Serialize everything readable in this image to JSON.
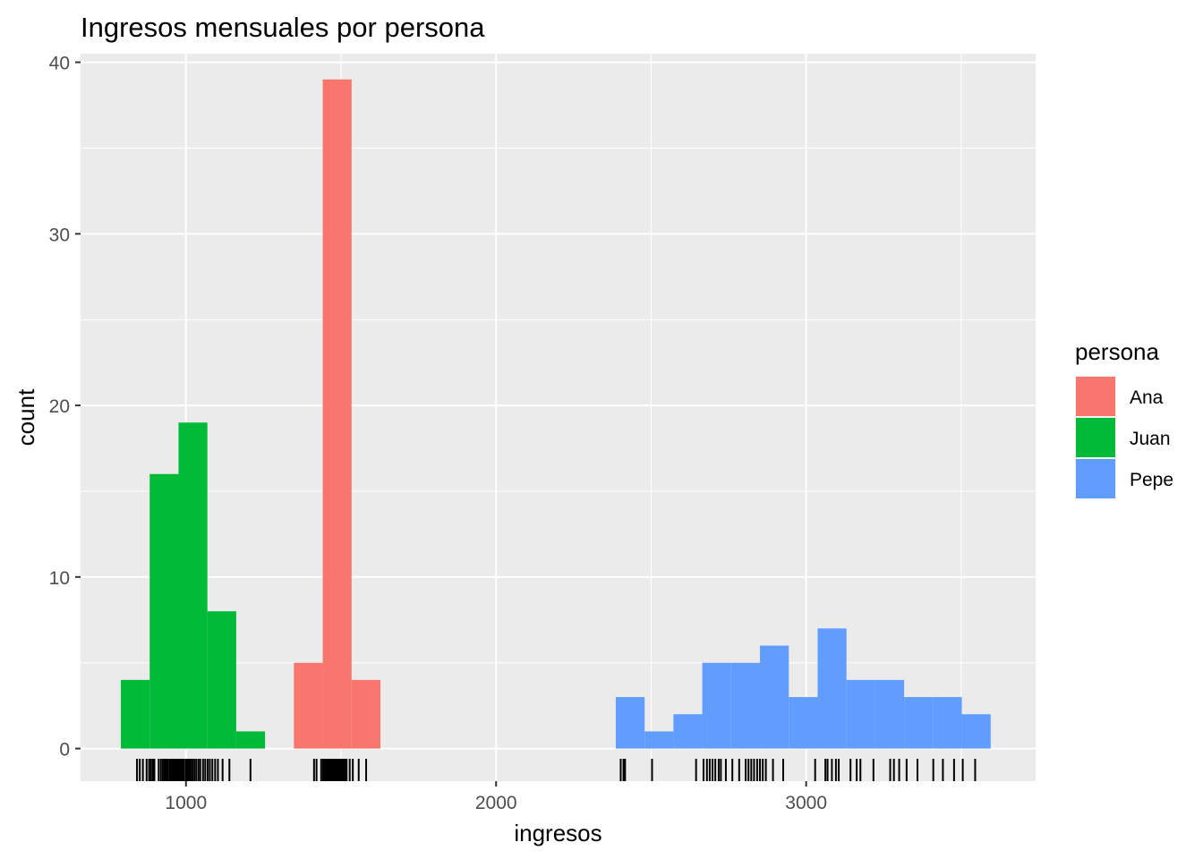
{
  "chart_data": {
    "type": "bar",
    "subtype": "histogram-with-rug",
    "title": "Ingresos mensuales por persona",
    "xlabel": "ingresos",
    "ylabel": "count",
    "xlim": [
      660,
      3740
    ],
    "ylim": [
      -1.9,
      40.5
    ],
    "x_ticks": [
      1000,
      2000,
      3000
    ],
    "x_tick_labels": [
      "1000",
      "2000",
      "3000"
    ],
    "y_ticks": [
      0,
      10,
      20,
      30,
      40
    ],
    "y_tick_labels": [
      "0",
      "10",
      "20",
      "30",
      "40"
    ],
    "grid": true,
    "legend": {
      "title": "persona",
      "position": "right",
      "entries": [
        {
          "name": "Ana",
          "color": "#F8766D"
        },
        {
          "name": "Juan",
          "color": "#00BA38"
        },
        {
          "name": "Pepe",
          "color": "#619CFF"
        }
      ]
    },
    "bin_width": 93,
    "series": [
      {
        "name": "Juan",
        "color": "#00BA38",
        "bins": [
          {
            "x0": 790,
            "x1": 883,
            "count": 4
          },
          {
            "x0": 883,
            "x1": 976,
            "count": 16
          },
          {
            "x0": 976,
            "x1": 1069,
            "count": 19
          },
          {
            "x0": 1069,
            "x1": 1162,
            "count": 8
          },
          {
            "x0": 1162,
            "x1": 1255,
            "count": 1
          }
        ],
        "rug": [
          842,
          851,
          861,
          873,
          881,
          887,
          893,
          898,
          912,
          919,
          925,
          930,
          935,
          940,
          946,
          951,
          956,
          961,
          966,
          971,
          976,
          981,
          986,
          990,
          994,
          1000,
          1005,
          1010,
          1015,
          1021,
          1027,
          1033,
          1040,
          1046,
          1055,
          1062,
          1070,
          1077,
          1085,
          1094,
          1103,
          1118,
          1140,
          1208
        ]
      },
      {
        "name": "Ana",
        "color": "#F8766D",
        "bins": [
          {
            "x0": 1348,
            "x1": 1441,
            "count": 5
          },
          {
            "x0": 1441,
            "x1": 1534,
            "count": 39
          },
          {
            "x0": 1534,
            "x1": 1627,
            "count": 4
          }
        ],
        "rug": [
          1413,
          1421,
          1436,
          1442,
          1447,
          1451,
          1455,
          1459,
          1463,
          1467,
          1471,
          1475,
          1479,
          1483,
          1487,
          1491,
          1495,
          1499,
          1503,
          1508,
          1513,
          1518,
          1528,
          1538,
          1557,
          1581
        ]
      },
      {
        "name": "Pepe",
        "color": "#619CFF",
        "bins": [
          {
            "x0": 2386,
            "x1": 2479,
            "count": 3
          },
          {
            "x0": 2479,
            "x1": 2572,
            "count": 1
          },
          {
            "x0": 2572,
            "x1": 2665,
            "count": 2
          },
          {
            "x0": 2665,
            "x1": 2758,
            "count": 5
          },
          {
            "x0": 2758,
            "x1": 2851,
            "count": 5
          },
          {
            "x0": 2851,
            "x1": 2944,
            "count": 6
          },
          {
            "x0": 2944,
            "x1": 3037,
            "count": 3
          },
          {
            "x0": 3037,
            "x1": 3130,
            "count": 7
          },
          {
            "x0": 3130,
            "x1": 3223,
            "count": 4
          },
          {
            "x0": 3223,
            "x1": 3316,
            "count": 4
          },
          {
            "x0": 3316,
            "x1": 3409,
            "count": 3
          },
          {
            "x0": 3409,
            "x1": 3502,
            "count": 3
          },
          {
            "x0": 3502,
            "x1": 3595,
            "count": 2
          }
        ],
        "rug": [
          2402,
          2411,
          2416,
          2503,
          2645,
          2669,
          2680,
          2689,
          2698,
          2707,
          2718,
          2725,
          2741,
          2762,
          2784,
          2805,
          2814,
          2823,
          2832,
          2842,
          2851,
          2860,
          2870,
          2893,
          2926,
          3029,
          3062,
          3069,
          3083,
          3096,
          3105,
          3143,
          3163,
          3175,
          3217,
          3271,
          3283,
          3300,
          3324,
          3359,
          3410,
          3441,
          3477,
          3505,
          3545
        ]
      }
    ]
  }
}
